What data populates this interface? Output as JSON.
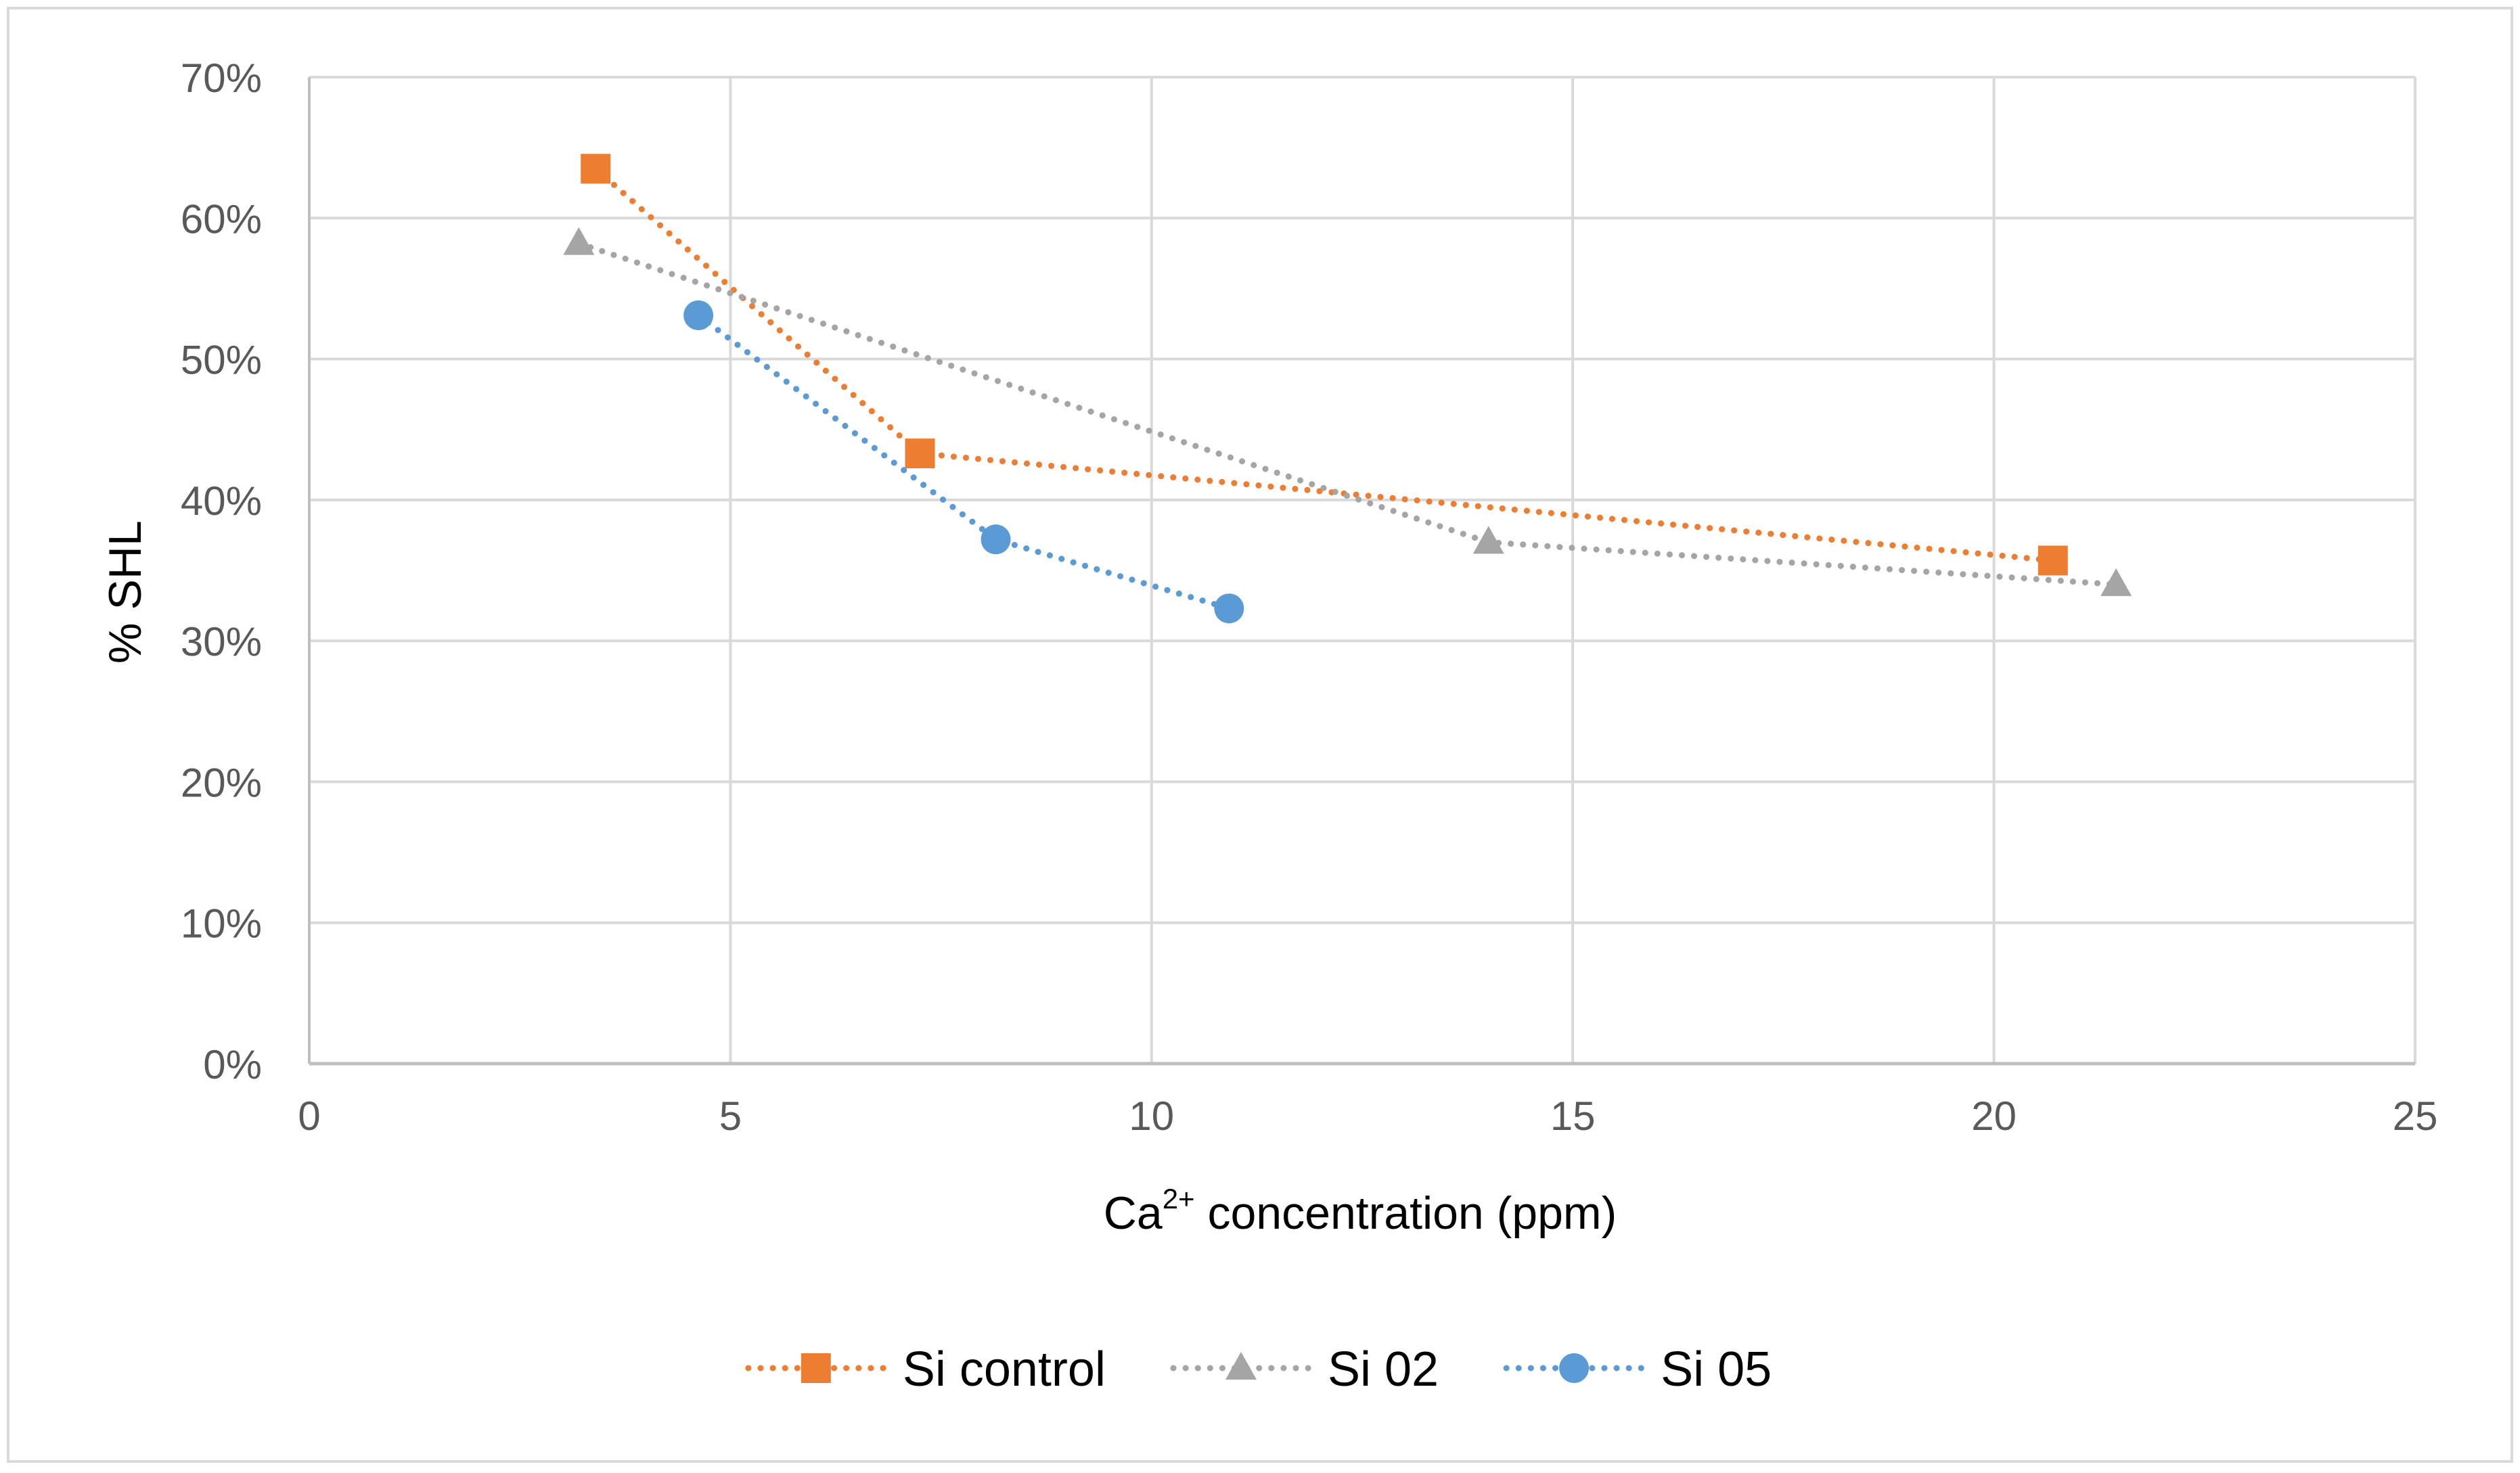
{
  "chart_data": {
    "type": "scatter",
    "title": "",
    "xlabel_main": "Ca",
    "xlabel_sup": "2+",
    "xlabel_rest": " concentration (ppm)",
    "ylabel": "% SHL",
    "xlim": [
      0,
      25
    ],
    "ylim": [
      0,
      0.7
    ],
    "x_ticks": [
      0,
      5,
      10,
      15,
      20,
      25
    ],
    "x_tick_labels": [
      "0",
      "5",
      "10",
      "15",
      "20",
      "25"
    ],
    "y_ticks": [
      0,
      0.1,
      0.2,
      0.3,
      0.4,
      0.5,
      0.6,
      0.7
    ],
    "y_tick_labels": [
      "0%",
      "10%",
      "20%",
      "30%",
      "40%",
      "50%",
      "60%",
      "70%"
    ],
    "grid": true,
    "legend_position": "bottom",
    "series": [
      {
        "name": "Si control",
        "marker": "square",
        "color": "#ED7D31",
        "x": [
          3.4,
          7.25,
          20.7
        ],
        "y": [
          0.635,
          0.433,
          0.357
        ]
      },
      {
        "name": "Si 02",
        "marker": "triangle",
        "color": "#A5A5A5",
        "x": [
          3.2,
          14.0,
          21.45
        ],
        "y": [
          0.582,
          0.37,
          0.34
        ]
      },
      {
        "name": "Si 05",
        "marker": "circle",
        "color": "#5B9BD5",
        "x": [
          4.62,
          8.15,
          10.92
        ],
        "y": [
          0.531,
          0.372,
          0.323
        ]
      }
    ]
  }
}
